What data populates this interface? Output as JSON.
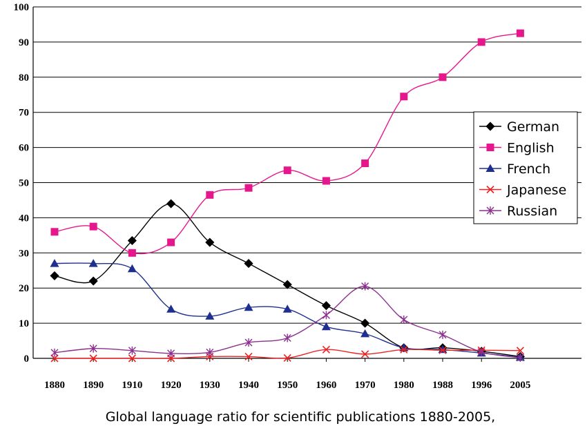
{
  "chart_data": {
    "type": "line",
    "title": "",
    "caption": "Global language ratio for scientific publications 1880-2005,",
    "xlabel": "",
    "ylabel": "",
    "categories": [
      "1880",
      "1890",
      "1910",
      "1920",
      "1930",
      "1940",
      "1950",
      "1960",
      "1970",
      "1980",
      "1988",
      "1996",
      "2005"
    ],
    "ylim": [
      0,
      100
    ],
    "yticks": [
      "0",
      "10",
      "20",
      "30",
      "40",
      "50",
      "60",
      "70",
      "80",
      "90",
      "100"
    ],
    "grid": true,
    "legend_position": "right",
    "series": [
      {
        "name": "German",
        "color": "#000000",
        "marker": "diamond",
        "values": [
          23.5,
          22,
          33.5,
          44,
          33,
          27,
          21,
          15,
          10,
          3,
          3,
          2,
          0.5
        ]
      },
      {
        "name": "English",
        "color": "#e6178c",
        "marker": "square",
        "values": [
          36,
          37.5,
          30,
          33,
          46.5,
          48.5,
          53.5,
          50.5,
          55.5,
          74.5,
          80,
          90,
          92.5
        ]
      },
      {
        "name": "French",
        "color": "#1f2f8f",
        "marker": "triangle",
        "values": [
          27,
          27,
          25.5,
          14,
          12,
          14.5,
          14,
          9,
          7,
          3,
          2.5,
          1.5,
          0.3
        ]
      },
      {
        "name": "Japanese",
        "color": "#ee2020",
        "marker": "x",
        "values": [
          0,
          0,
          0,
          0,
          0.5,
          0.5,
          0.1,
          2.5,
          1.2,
          2.5,
          2.3,
          2.3,
          2.2
        ]
      },
      {
        "name": "Russian",
        "color": "#8b2f8f",
        "marker": "star",
        "values": [
          1.6,
          2.8,
          2.2,
          1.4,
          1.7,
          4.5,
          5.8,
          12.3,
          20.5,
          11,
          6.7,
          1.8,
          0.2
        ]
      }
    ]
  }
}
